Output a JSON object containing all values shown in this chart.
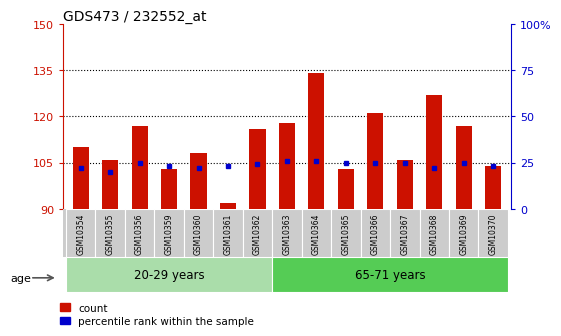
{
  "title": "GDS473 / 232552_at",
  "categories": [
    "GSM10354",
    "GSM10355",
    "GSM10356",
    "GSM10359",
    "GSM10360",
    "GSM10361",
    "GSM10362",
    "GSM10363",
    "GSM10364",
    "GSM10365",
    "GSM10366",
    "GSM10367",
    "GSM10368",
    "GSM10369",
    "GSM10370"
  ],
  "count_values": [
    110,
    106,
    117,
    103,
    108,
    92,
    116,
    118,
    134,
    103,
    121,
    106,
    127,
    117,
    104
  ],
  "percentile_values": [
    22,
    20,
    25,
    23,
    22,
    23,
    24,
    26,
    26,
    25,
    25,
    25,
    22,
    25,
    23
  ],
  "groups": [
    {
      "label": "20-29 years",
      "start": 0,
      "end": 7,
      "color": "#aaddaa"
    },
    {
      "label": "65-71 years",
      "start": 7,
      "end": 15,
      "color": "#55cc55"
    }
  ],
  "age_label": "age",
  "ylim_left": [
    90,
    150
  ],
  "ylim_right": [
    0,
    100
  ],
  "yticks_left": [
    90,
    105,
    120,
    135,
    150
  ],
  "yticks_right": [
    0,
    25,
    50,
    75,
    100
  ],
  "ytick_labels_right": [
    "0",
    "25",
    "50",
    "75",
    "100%"
  ],
  "grid_values": [
    105,
    120,
    135
  ],
  "bar_bottom": 90,
  "count_color": "#cc1100",
  "percentile_color": "#0000cc",
  "bar_width": 0.55,
  "legend_count": "count",
  "legend_percentile": "percentile rank within the sample",
  "bg_color": "#ffffff",
  "label_bg_color": "#cccccc"
}
